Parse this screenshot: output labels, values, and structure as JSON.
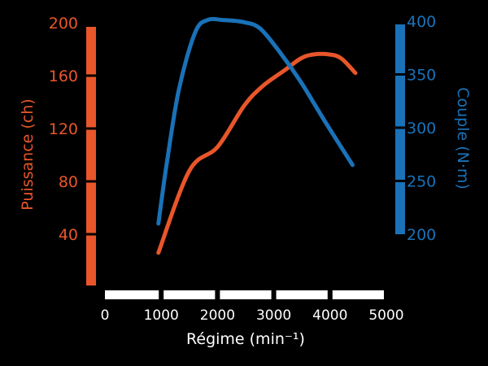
{
  "chart_data": {
    "type": "line",
    "title": "",
    "xlabel": "Régime (min⁻¹)",
    "xlim": [
      0,
      5000
    ],
    "xticks": [
      0,
      1000,
      2000,
      3000,
      4000,
      5000
    ],
    "xtick_labels": [
      "0",
      "1000",
      "2000",
      "3000",
      "4000",
      "5000"
    ],
    "grid": false,
    "colors": {
      "background": "#000000",
      "power": "#e8562a",
      "torque": "#1a72b8",
      "xaxis": "#ffffff"
    },
    "left_axis": {
      "label": "Puissance (ch)",
      "ylim": [
        0,
        200
      ],
      "ticks": [
        40,
        80,
        120,
        160,
        200
      ],
      "tick_labels": [
        "40",
        "80",
        "120",
        "160",
        "200"
      ]
    },
    "right_axis": {
      "label": "Couple (N·m)",
      "ylim": [
        200,
        400
      ],
      "ticks": [
        200,
        250,
        300,
        350,
        400
      ],
      "tick_labels": [
        "200",
        "250",
        "300",
        "350",
        "400"
      ]
    },
    "series": [
      {
        "axis": "left",
        "color": "#e8562a",
        "x": [
          950,
          1500,
          2000,
          2470,
          2800,
          3190,
          3480,
          3700,
          3990,
          4200,
          4450
        ],
        "y": [
          26,
          88,
          106,
          137,
          152,
          164,
          173,
          176,
          176,
          173,
          162
        ]
      },
      {
        "axis": "right",
        "color": "#1a72b8",
        "x": [
          950,
          1100,
          1315,
          1600,
          1820,
          2110,
          2470,
          2760,
          3120,
          3480,
          3920,
          4400
        ],
        "y": [
          210,
          267,
          336,
          389,
          401,
          401,
          399,
          393,
          370,
          343,
          305,
          265
        ]
      }
    ]
  }
}
